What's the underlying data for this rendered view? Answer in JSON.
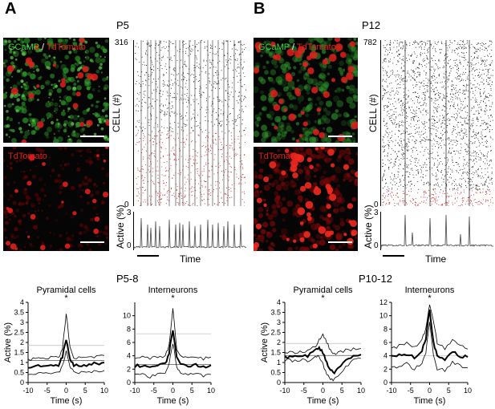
{
  "panels": {
    "A": {
      "letter": "A",
      "age": "P5",
      "max_cell": "316",
      "min_cell": "0"
    },
    "B": {
      "letter": "B",
      "age": "P12",
      "max_cell": "782",
      "min_cell": "0"
    }
  },
  "image_labels": {
    "merge_green": "GCaMP",
    "merge_sep": " / ",
    "merge_red": "TdTomato",
    "red_only": "TdTomato"
  },
  "raster": {
    "ylabel": "CELL (#)",
    "active_label": "Active (%)",
    "time_label": "Time"
  },
  "bottom": {
    "left_title": "P5-8",
    "right_title": "P10-12",
    "pyramidal": "Pyramidal cells",
    "interneurons": "Interneurons",
    "star": "*",
    "ylabel": "Active (%)",
    "xlabel": "Time (s)"
  },
  "colors": {
    "green": "#3fd13a",
    "red": "#e0201c",
    "raster_red": "#c0131a"
  },
  "chart_data": [
    {
      "type": "line",
      "title": "Pyramidal cells",
      "group": "P5-8",
      "xlabel": "Time (s)",
      "ylabel": "Active (%)",
      "xlim": [
        -10,
        10
      ],
      "ylim": [
        0,
        4
      ],
      "xticks": [
        -10,
        -5,
        0,
        5,
        10
      ],
      "yticks": [
        0,
        0.5,
        1,
        1.5,
        2,
        2.5,
        3,
        3.5,
        4
      ],
      "series": [
        {
          "x": [
            -10,
            -8,
            -6,
            -4,
            -2,
            -1,
            0,
            1,
            2,
            4,
            6,
            8,
            10
          ],
          "values": [
            1.15,
            1.2,
            1.25,
            1.25,
            1.3,
            1.6,
            3.5,
            1.7,
            1.2,
            1.25,
            1.25,
            1.3,
            1.35
          ]
        },
        {
          "x": [
            -10,
            -8,
            -6,
            -4,
            -2,
            -1,
            0,
            1,
            2,
            4,
            6,
            8,
            10
          ],
          "values": [
            0.75,
            0.8,
            0.85,
            0.85,
            0.9,
            1.3,
            2.1,
            1.2,
            0.85,
            0.85,
            0.9,
            0.95,
            1.0
          ]
        },
        {
          "x": [
            -10,
            -8,
            -6,
            -4,
            -2,
            -1,
            0,
            1,
            2,
            4,
            6,
            8,
            10
          ],
          "values": [
            0.35,
            0.4,
            0.45,
            0.45,
            0.5,
            0.8,
            1.6,
            0.8,
            0.5,
            0.5,
            0.55,
            0.55,
            0.6
          ]
        }
      ],
      "hlines": [
        1.85,
        1.1
      ]
    },
    {
      "type": "line",
      "title": "Interneurons",
      "group": "P5-8",
      "xlabel": "Time (s)",
      "xlim": [
        -10,
        10
      ],
      "ylim": [
        0,
        12
      ],
      "xticks": [
        -10,
        -5,
        0,
        5,
        10
      ],
      "yticks": [
        0,
        2,
        4,
        6,
        8,
        10
      ],
      "series": [
        {
          "x": [
            -10,
            -8,
            -6,
            -4,
            -2,
            -1,
            0,
            1,
            2,
            4,
            6,
            8,
            10
          ],
          "values": [
            3.6,
            3.8,
            3.5,
            3.9,
            4.0,
            5.5,
            11.0,
            5.0,
            3.8,
            3.7,
            3.9,
            3.6,
            3.8
          ]
        },
        {
          "x": [
            -10,
            -8,
            -6,
            -4,
            -2,
            -1,
            0,
            1,
            2,
            4,
            6,
            8,
            10
          ],
          "values": [
            2.4,
            2.6,
            2.3,
            2.5,
            2.8,
            4.5,
            7.8,
            4.0,
            2.6,
            2.5,
            2.7,
            2.4,
            2.6
          ]
        },
        {
          "x": [
            -10,
            -8,
            -6,
            -4,
            -2,
            -1,
            0,
            1,
            2,
            4,
            6,
            8,
            10
          ],
          "values": [
            1.0,
            1.3,
            0.9,
            1.2,
            1.5,
            3.0,
            6.0,
            2.5,
            1.3,
            1.1,
            1.4,
            1.0,
            1.2
          ]
        }
      ],
      "hlines": [
        7.3,
        2.7
      ]
    },
    {
      "type": "line",
      "title": "Pyramidal cells",
      "group": "P10-12",
      "xlabel": "Time (s)",
      "ylabel": "Active (%)",
      "xlim": [
        -10,
        10
      ],
      "ylim": [
        0,
        4
      ],
      "xticks": [
        -10,
        -5,
        0,
        5,
        10
      ],
      "yticks": [
        0,
        0.5,
        1,
        1.5,
        2,
        2.5,
        3,
        3.5,
        4
      ],
      "series": [
        {
          "x": [
            -10,
            -8,
            -6,
            -4,
            -2,
            -1,
            0,
            1,
            2,
            3,
            4,
            6,
            8,
            10
          ],
          "values": [
            1.5,
            1.5,
            1.55,
            1.6,
            1.8,
            2.1,
            2.4,
            2.0,
            1.6,
            1.4,
            1.5,
            1.6,
            1.65,
            1.7
          ]
        },
        {
          "x": [
            -10,
            -8,
            -6,
            -4,
            -2,
            -1,
            0,
            1,
            2,
            3,
            4,
            6,
            8,
            10
          ],
          "values": [
            1.3,
            1.25,
            1.3,
            1.35,
            1.6,
            1.7,
            1.5,
            1.0,
            0.6,
            0.5,
            0.7,
            1.1,
            1.3,
            1.4
          ]
        },
        {
          "x": [
            -10,
            -8,
            -6,
            -4,
            -2,
            -1,
            0,
            1,
            2,
            3,
            4,
            6,
            8,
            10
          ],
          "values": [
            1.1,
            1.1,
            1.15,
            1.1,
            1.3,
            1.3,
            0.9,
            0.4,
            0.2,
            0.15,
            0.4,
            0.8,
            1.1,
            1.2
          ]
        }
      ],
      "hlines": [
        1.95,
        1.35
      ]
    },
    {
      "type": "line",
      "title": "Interneurons",
      "group": "P10-12",
      "xlabel": "Time (s)",
      "xlim": [
        -10,
        10
      ],
      "ylim": [
        0,
        12
      ],
      "xticks": [
        -10,
        -5,
        0,
        5,
        10
      ],
      "yticks": [
        0,
        2,
        4,
        6,
        8,
        10,
        12
      ],
      "series": [
        {
          "x": [
            -10,
            -8,
            -6,
            -4,
            -2,
            -1,
            0,
            1,
            2,
            4,
            6,
            8,
            10
          ],
          "values": [
            5.0,
            5.5,
            6.0,
            5.2,
            6.5,
            8.0,
            11.5,
            9.0,
            6.0,
            5.0,
            6.5,
            5.5,
            5.0
          ]
        },
        {
          "x": [
            -10,
            -8,
            -6,
            -4,
            -2,
            -1,
            0,
            1,
            2,
            4,
            6,
            8,
            10
          ],
          "values": [
            3.8,
            4.0,
            4.3,
            3.7,
            4.8,
            6.5,
            11.0,
            6.0,
            4.0,
            3.5,
            4.8,
            4.0,
            3.8
          ]
        },
        {
          "x": [
            -10,
            -8,
            -6,
            -4,
            -2,
            -1,
            0,
            1,
            2,
            4,
            6,
            8,
            10
          ],
          "values": [
            2.5,
            2.2,
            2.8,
            2.0,
            3.0,
            4.5,
            9.0,
            4.0,
            2.0,
            1.8,
            3.0,
            2.5,
            2.2
          ]
        }
      ],
      "hlines": [
        4.0
      ]
    }
  ]
}
